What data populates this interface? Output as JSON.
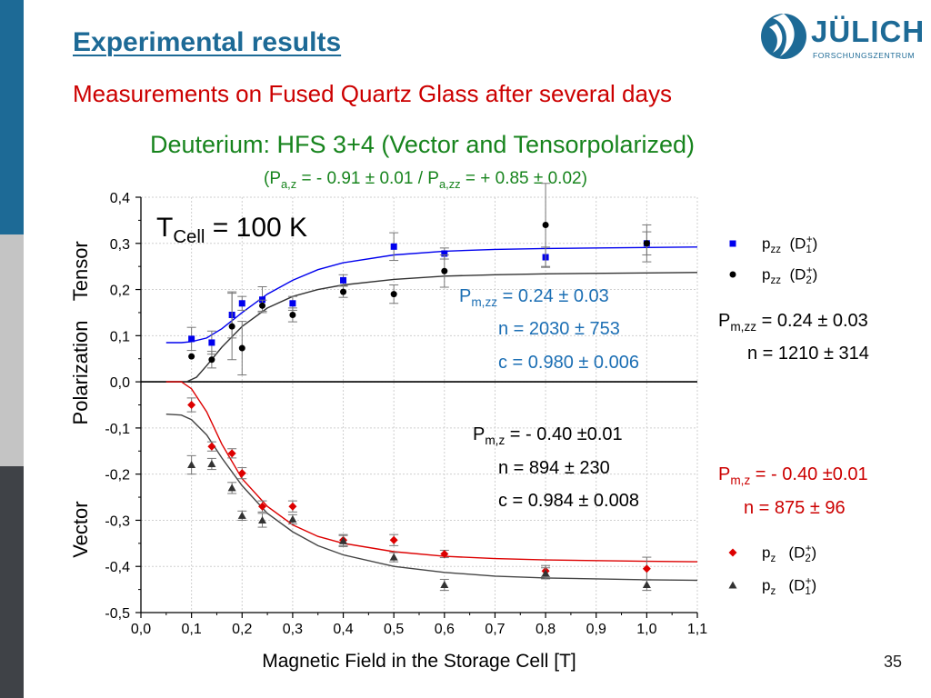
{
  "slide": {
    "title": "Experimental results",
    "subtitle": "Measurements on Fused Quartz Glass after several days",
    "heading": "Deuterium: HFS 3+4 (Vector and Tensorpolarized)",
    "pol_parts": [
      "(P",
      "a,z",
      " = - 0.91 ± 0.01 / P",
      "a,zz",
      " = + 0.85 ± 0.02)"
    ],
    "page_number": "35",
    "logo": {
      "name": "JÜLICH",
      "sub": "FORSCHUNGSZENTRUM"
    }
  },
  "annotations": {
    "tcell": [
      "T",
      "Cell",
      " = 100 K"
    ],
    "blue_pmzz": [
      "P",
      "m,zz",
      " = 0.24 ± 0.03"
    ],
    "blue_n": "n = 2030 ± 753",
    "blue_c": "c =  0.980 ± 0.006",
    "black_pmzz": [
      "P",
      "m,zz",
      " = 0.24 ± 0.03"
    ],
    "black_n": "n = 1210 ± 314",
    "dark_pmz": [
      "P",
      "m,z",
      " = - 0.40 ±0.01"
    ],
    "dark_n": "n =  894 ± 230",
    "dark_c": "c =  0.984 ± 0.008",
    "red_pmz": [
      "P",
      "m,z",
      " = - 0.40 ±0.01"
    ],
    "red_n": "n = 875 ± 96"
  },
  "legend": {
    "tensor": [
      {
        "p": "p",
        "sub": "zz",
        "d": "(D",
        "dsup": "+",
        "dsub": "1",
        "end": ")",
        "color": "#0000ee",
        "marker": "square"
      },
      {
        "p": "p",
        "sub": "zz",
        "d": "(D",
        "dsup": "+",
        "dsub": "2",
        "end": ")",
        "color": "#000000",
        "marker": "circle"
      }
    ],
    "vector": [
      {
        "p": "p",
        "sub": "z",
        "d": "(D",
        "dsup": "+",
        "dsub": "2",
        "end": ")",
        "color": "#dd0000",
        "marker": "diamond"
      },
      {
        "p": "p",
        "sub": "z",
        "d": "(D",
        "dsup": "+",
        "dsub": "1",
        "end": ")",
        "color": "#333333",
        "marker": "triangle"
      }
    ]
  },
  "chart_data": {
    "type": "scatter",
    "xlabel": "Magnetic Field in the Storage Cell [T]",
    "ylabel_groups": [
      "Vector",
      "Polarization",
      "Tensor"
    ],
    "xlim": [
      0.0,
      1.1
    ],
    "ylim": [
      -0.5,
      0.4
    ],
    "xticks": [
      "0,0",
      "0,1",
      "0,2",
      "0,3",
      "0,4",
      "0,5",
      "0,6",
      "0,7",
      "0,8",
      "0,9",
      "1,0",
      "1,1"
    ],
    "yticks": [
      "-0,5",
      "-0,4",
      "-0,3",
      "-0,2",
      "-0,1",
      "0,0",
      "0,1",
      "0,2",
      "0,3",
      "0,4"
    ],
    "grid": true,
    "series": [
      {
        "name": "pzz (D1+)",
        "color": "#0000ee",
        "marker": "square",
        "line_color": "#0000ee",
        "points": [
          [
            0.1,
            0.093,
            0.025
          ],
          [
            0.14,
            0.085,
            0.025
          ],
          [
            0.18,
            0.145,
            0.05
          ],
          [
            0.2,
            0.17,
            0.015
          ],
          [
            0.24,
            0.178,
            0.028
          ],
          [
            0.3,
            0.17,
            0.015
          ],
          [
            0.4,
            0.22,
            0.012
          ],
          [
            0.5,
            0.293,
            0.03
          ],
          [
            0.6,
            0.278,
            0.012
          ],
          [
            0.8,
            0.27,
            0.022
          ],
          [
            1.0,
            0.3,
            0.025
          ]
        ],
        "curve": [
          [
            0.05,
            0.085
          ],
          [
            0.08,
            0.085
          ],
          [
            0.1,
            0.087
          ],
          [
            0.13,
            0.095
          ],
          [
            0.16,
            0.115
          ],
          [
            0.2,
            0.15
          ],
          [
            0.25,
            0.19
          ],
          [
            0.3,
            0.22
          ],
          [
            0.35,
            0.243
          ],
          [
            0.4,
            0.258
          ],
          [
            0.5,
            0.275
          ],
          [
            0.6,
            0.283
          ],
          [
            0.7,
            0.287
          ],
          [
            0.8,
            0.289
          ],
          [
            1.0,
            0.291
          ],
          [
            1.1,
            0.292
          ]
        ]
      },
      {
        "name": "pzz (D2+)",
        "color": "#000000",
        "marker": "circle",
        "line_color": "#333333",
        "points": [
          [
            0.1,
            0.055,
            0.0
          ],
          [
            0.14,
            0.048,
            0.018
          ],
          [
            0.18,
            0.12,
            0.072
          ],
          [
            0.2,
            0.073,
            0.058
          ],
          [
            0.24,
            0.165,
            0.012
          ],
          [
            0.3,
            0.145,
            0.015
          ],
          [
            0.4,
            0.195,
            0.012
          ],
          [
            0.5,
            0.19,
            0.02
          ],
          [
            0.6,
            0.24,
            0.035
          ],
          [
            0.8,
            0.34,
            0.09
          ],
          [
            1.0,
            0.3,
            0.04
          ]
        ],
        "curve": [
          [
            0.05,
            0.0
          ],
          [
            0.09,
            0.0
          ],
          [
            0.11,
            0.01
          ],
          [
            0.13,
            0.035
          ],
          [
            0.16,
            0.075
          ],
          [
            0.2,
            0.12
          ],
          [
            0.25,
            0.16
          ],
          [
            0.3,
            0.185
          ],
          [
            0.35,
            0.2
          ],
          [
            0.4,
            0.21
          ],
          [
            0.5,
            0.222
          ],
          [
            0.6,
            0.229
          ],
          [
            0.7,
            0.232
          ],
          [
            0.8,
            0.234
          ],
          [
            1.0,
            0.236
          ],
          [
            1.1,
            0.237
          ]
        ]
      },
      {
        "name": "pz (D2+)",
        "color": "#dd0000",
        "marker": "diamond",
        "line_color": "#dd0000",
        "points": [
          [
            0.1,
            -0.05,
            0.015
          ],
          [
            0.14,
            -0.14,
            0.01
          ],
          [
            0.18,
            -0.155,
            0.01
          ],
          [
            0.2,
            -0.198,
            0.012
          ],
          [
            0.24,
            -0.27,
            0.012
          ],
          [
            0.3,
            -0.27,
            0.012
          ],
          [
            0.4,
            -0.343,
            0.012
          ],
          [
            0.5,
            -0.343,
            0.012
          ],
          [
            0.6,
            -0.373,
            0.008
          ],
          [
            0.8,
            -0.41,
            0.012
          ],
          [
            1.0,
            -0.405,
            0.025
          ]
        ],
        "curve": [
          [
            0.05,
            0.0
          ],
          [
            0.08,
            0.0
          ],
          [
            0.1,
            -0.015
          ],
          [
            0.13,
            -0.065
          ],
          [
            0.16,
            -0.135
          ],
          [
            0.2,
            -0.21
          ],
          [
            0.25,
            -0.27
          ],
          [
            0.3,
            -0.31
          ],
          [
            0.35,
            -0.335
          ],
          [
            0.4,
            -0.35
          ],
          [
            0.5,
            -0.368
          ],
          [
            0.6,
            -0.378
          ],
          [
            0.7,
            -0.383
          ],
          [
            0.8,
            -0.386
          ],
          [
            1.0,
            -0.389
          ],
          [
            1.1,
            -0.39
          ]
        ]
      },
      {
        "name": "pz (D1+)",
        "color": "#333333",
        "marker": "triangle",
        "line_color": "#444444",
        "points": [
          [
            0.1,
            -0.18,
            0.02
          ],
          [
            0.14,
            -0.178,
            0.012
          ],
          [
            0.18,
            -0.23,
            0.012
          ],
          [
            0.2,
            -0.29,
            0.01
          ],
          [
            0.24,
            -0.3,
            0.015
          ],
          [
            0.3,
            -0.298,
            0.01
          ],
          [
            0.4,
            -0.345,
            0.012
          ],
          [
            0.5,
            -0.38,
            0.01
          ],
          [
            0.6,
            -0.44,
            0.012
          ],
          [
            0.8,
            -0.415,
            0.012
          ],
          [
            1.0,
            -0.44,
            0.012
          ]
        ],
        "curve": [
          [
            0.05,
            -0.07
          ],
          [
            0.08,
            -0.072
          ],
          [
            0.1,
            -0.082
          ],
          [
            0.13,
            -0.115
          ],
          [
            0.16,
            -0.165
          ],
          [
            0.2,
            -0.225
          ],
          [
            0.25,
            -0.285
          ],
          [
            0.3,
            -0.325
          ],
          [
            0.35,
            -0.355
          ],
          [
            0.4,
            -0.375
          ],
          [
            0.5,
            -0.4
          ],
          [
            0.6,
            -0.413
          ],
          [
            0.7,
            -0.421
          ],
          [
            0.8,
            -0.425
          ],
          [
            1.0,
            -0.429
          ],
          [
            1.1,
            -0.43
          ]
        ]
      }
    ]
  }
}
